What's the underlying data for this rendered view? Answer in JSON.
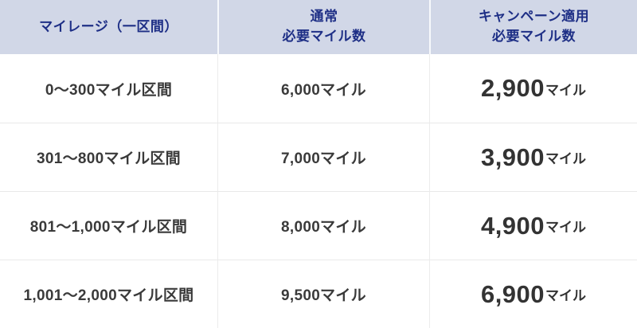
{
  "table": {
    "headers": {
      "mileage_section": {
        "label": "マイレージ（一区間）"
      },
      "normal": {
        "line1": "通常",
        "line2": "必要マイル数"
      },
      "campaign": {
        "line1": "キャンペーン適用",
        "line2": "必要マイル数"
      }
    },
    "rows": [
      {
        "range": "0〜300マイル区間",
        "normal": "6,000マイル",
        "campaign_value": "2,900",
        "campaign_unit": "マイル"
      },
      {
        "range": "301〜800マイル区間",
        "normal": "7,000マイル",
        "campaign_value": "3,900",
        "campaign_unit": "マイル"
      },
      {
        "range": "801〜1,000マイル区間",
        "normal": "8,000マイル",
        "campaign_value": "4,900",
        "campaign_unit": "マイル"
      },
      {
        "range": "1,001〜2,000マイル区間",
        "normal": "9,500マイル",
        "campaign_value": "6,900",
        "campaign_unit": "マイル"
      }
    ],
    "colors": {
      "header_bg": "#d1d7e7",
      "header_text": "#1e2f86",
      "body_text": "#3a3a3a",
      "divider": "#e9e9e9"
    }
  }
}
